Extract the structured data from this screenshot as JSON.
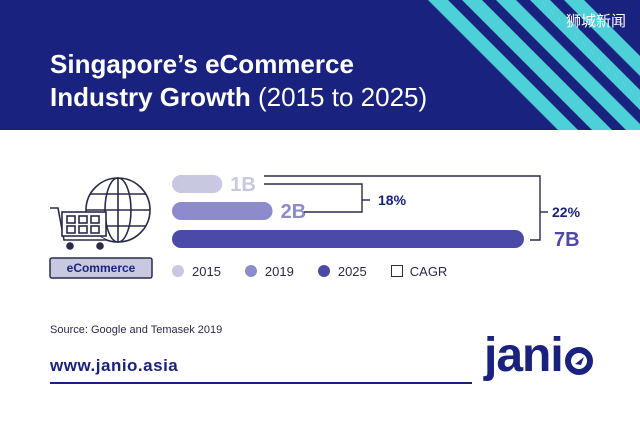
{
  "header": {
    "title_line1": "Singapore’s eCommerce",
    "title_line2_bold": "Industry Growth",
    "title_line2_light": "(2015 to 2025)",
    "watermark": "狮城新闻",
    "colors": {
      "background": "#1a2280",
      "stripe": "#4dd0d8"
    }
  },
  "icon": {
    "name": "shopping-cart-globe-icon",
    "label": "eCommerce"
  },
  "chart_data": {
    "type": "bar",
    "orientation": "horizontal",
    "categories": [
      "2015",
      "2019",
      "2025"
    ],
    "values": [
      1,
      2,
      7
    ],
    "value_labels": [
      "1B",
      "2B",
      "7B"
    ],
    "unit": "B",
    "colors": [
      "#c8c8e0",
      "#8c8ccc",
      "#4b4aa8"
    ],
    "cagr": [
      {
        "label": "18%",
        "from": "2015",
        "to": "2019"
      },
      {
        "label": "22%",
        "from": "2015",
        "to": "2025"
      }
    ],
    "legend": [
      "2015",
      "2019",
      "2025",
      "CAGR"
    ],
    "legend_position": "bottom"
  },
  "footer": {
    "source": "Source: Google and Temasek 2019",
    "url": "www.janio.asia",
    "logo_text": "jani"
  }
}
